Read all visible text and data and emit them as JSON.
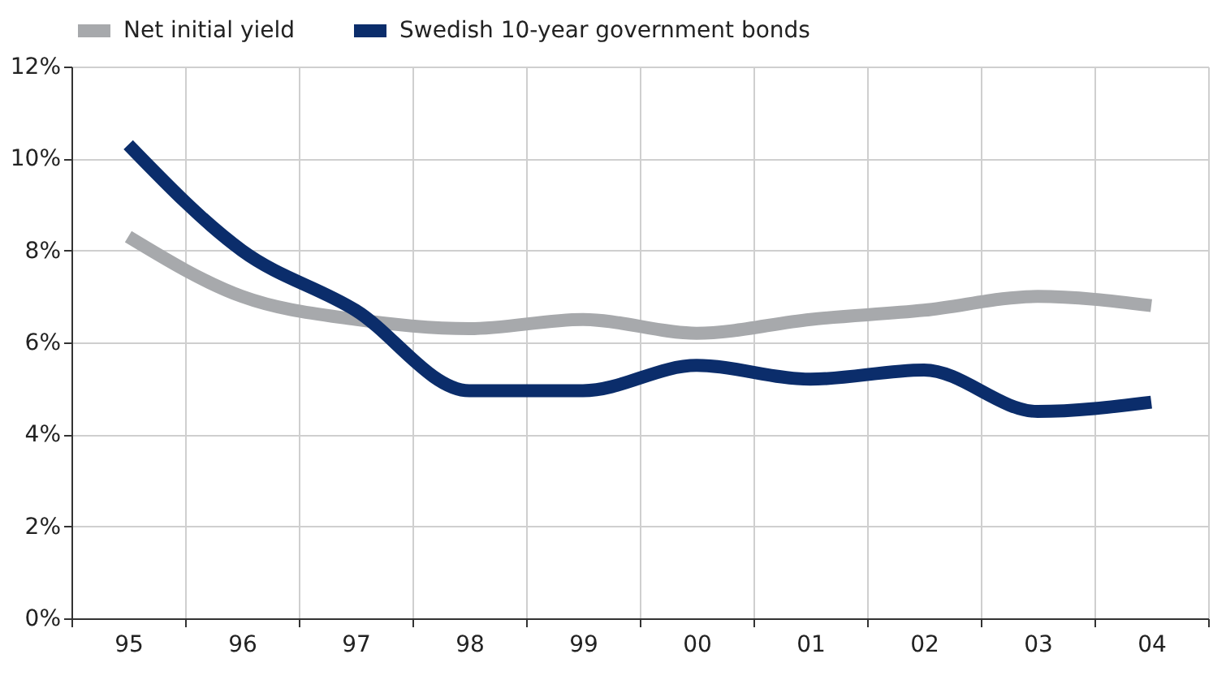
{
  "chart_data": {
    "type": "line",
    "categories": [
      "95",
      "96",
      "97",
      "98",
      "99",
      "00",
      "01",
      "02",
      "03",
      "04"
    ],
    "series": [
      {
        "name": "Net initial yield",
        "color": "#a7a9ac",
        "values": [
          8.3,
          7.0,
          6.5,
          6.3,
          6.5,
          6.2,
          6.5,
          6.7,
          7.0,
          6.8
        ]
      },
      {
        "name": "Swedish 10-year government bonds",
        "color": "#0b2d6b",
        "values": [
          10.3,
          8.0,
          6.7,
          4.95,
          4.95,
          5.5,
          5.2,
          5.4,
          4.5,
          4.7
        ]
      }
    ],
    "ylim": [
      0,
      12
    ],
    "yticks": [
      {
        "value": 0,
        "label": "0%"
      },
      {
        "value": 2,
        "label": "2%"
      },
      {
        "value": 4,
        "label": "4%"
      },
      {
        "value": 6,
        "label": "6%"
      },
      {
        "value": 8,
        "label": "8%"
      },
      {
        "value": 10,
        "label": "10%"
      },
      {
        "value": 12,
        "label": "12%"
      }
    ],
    "grid": true,
    "legend": "top",
    "line_style": "solid",
    "marker": "none"
  }
}
